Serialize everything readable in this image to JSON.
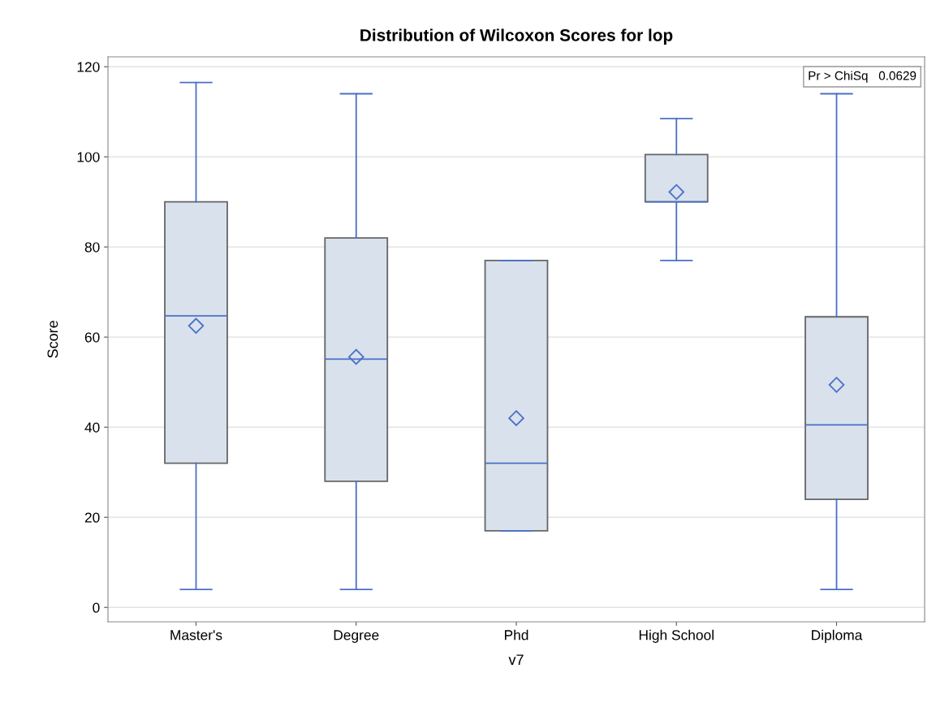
{
  "chart_data": {
    "type": "box",
    "title": "Distribution of Wilcoxon Scores for lop",
    "xlabel": "v7",
    "ylabel": "Score",
    "categories": [
      "Master's",
      "Degree",
      "Phd",
      "High School",
      "Diploma"
    ],
    "boxes": [
      {
        "low": 4,
        "q1": 32,
        "median": 64.7,
        "q3": 90,
        "high": 116.5,
        "mean": 62.5
      },
      {
        "low": 4,
        "q1": 28,
        "median": 55.1,
        "q3": 82,
        "high": 114,
        "mean": 55.6
      },
      {
        "low": 17,
        "q1": 17,
        "median": 32,
        "q3": 77,
        "high": 77,
        "mean": 42
      },
      {
        "low": 77,
        "q1": 90,
        "median": 90,
        "q3": 100.5,
        "high": 108.5,
        "mean": 92.2
      },
      {
        "low": 4,
        "q1": 24,
        "median": 40.5,
        "q3": 64.5,
        "high": 114,
        "mean": 49.4
      }
    ],
    "color": "#d9e1ec",
    "ylim": [
      -3.2,
      122.2
    ],
    "yticks": [
      0,
      20,
      40,
      60,
      80,
      100,
      120
    ],
    "grid": "y",
    "marker": "diamond",
    "annotations": [
      "Pr > ChiSq   0.0629"
    ]
  }
}
